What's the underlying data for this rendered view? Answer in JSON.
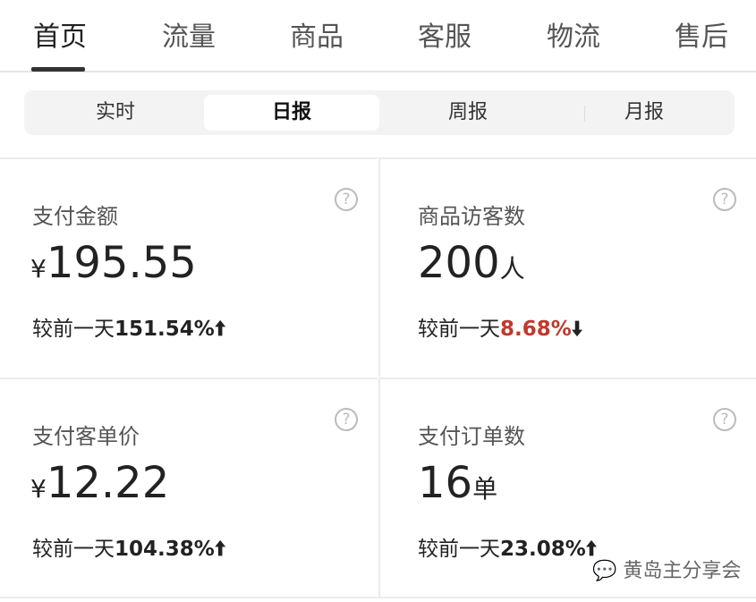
{
  "tabs": [
    "首页",
    "流量",
    "商品",
    "客服",
    "物流",
    "售后"
  ],
  "periods": [
    "实时",
    "日报",
    "周报",
    "月报"
  ],
  "active_tab": "首页",
  "active_period": "日报",
  "compare_prefix": "较前一天",
  "colors": {
    "down": "#c0392b",
    "text": "#222"
  },
  "cards": [
    {
      "label": "支付金额",
      "currency": "¥",
      "value": "195.55",
      "unit": "",
      "change": "151.54%",
      "direction": "up"
    },
    {
      "label": "商品访客数",
      "currency": "",
      "value": "200",
      "unit": "人",
      "change": "8.68%",
      "direction": "down"
    },
    {
      "label": "支付客单价",
      "currency": "¥",
      "value": "12.22",
      "unit": "",
      "change": "104.38%",
      "direction": "up"
    },
    {
      "label": "支付订单数",
      "currency": "",
      "value": "16",
      "unit": "单",
      "change": "23.08%",
      "direction": "up"
    }
  ],
  "help_icon": "?",
  "arrows": {
    "up": "🠩",
    "down": "🠫"
  },
  "watermark": "黄岛主分享会"
}
